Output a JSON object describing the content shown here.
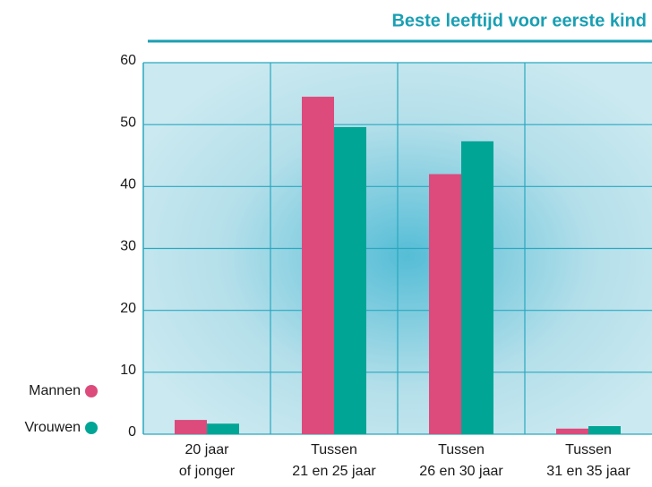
{
  "chart_data": {
    "type": "bar",
    "title": "Beste leeftijd voor eerste kind",
    "categories": [
      [
        "20 jaar",
        "of jonger"
      ],
      [
        "Tussen",
        "21 en 25 jaar"
      ],
      [
        "Tussen",
        "26 en 30 jaar"
      ],
      [
        "Tussen",
        "31 en 35 jaar"
      ]
    ],
    "series": [
      {
        "name": "Mannen",
        "color": "#dc4b7c",
        "values": [
          2.3,
          54.5,
          42.0,
          0.9
        ]
      },
      {
        "name": "Vrouwen",
        "color": "#00a595",
        "values": [
          1.7,
          49.6,
          47.3,
          1.3
        ]
      }
    ],
    "ylim": [
      0,
      60
    ],
    "yticks": [
      0,
      10,
      20,
      30,
      40,
      50,
      60
    ],
    "grid": true,
    "legend": "left"
  }
}
